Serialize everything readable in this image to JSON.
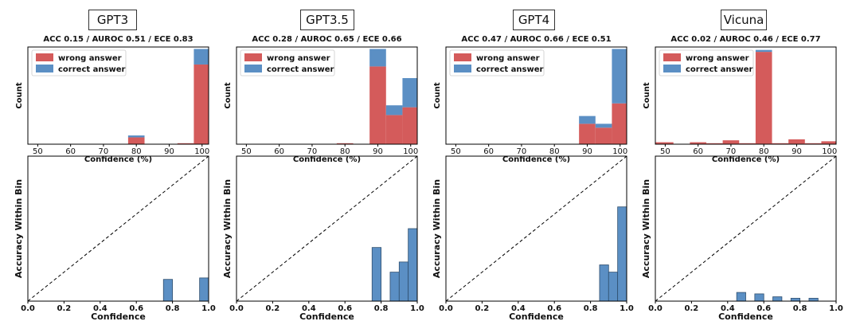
{
  "colors": {
    "wrong": "#d45b5b",
    "correct": "#5b8fc4",
    "bar_edge": "#2f4f6f"
  },
  "chart_data": [
    {
      "model": "GPT3",
      "title": "ACC 0.15 / AUROC 0.51 / ECE 0.83",
      "histogram": {
        "type": "bar",
        "stacked": true,
        "xlabel": "Confidence (%)",
        "ylabel": "Count",
        "xlim": [
          47,
          102
        ],
        "xticks": [
          50,
          60,
          70,
          80,
          90,
          100
        ],
        "legend": [
          "wrong answer",
          "correct answer"
        ],
        "legend_position": "top-left",
        "ylim": [
          0,
          1
        ],
        "bins": [
          {
            "x0": 77.5,
            "x1": 82.5,
            "wrong": 0.07,
            "correct": 0.02
          },
          {
            "x0": 92.5,
            "x1": 97.5,
            "wrong": 0.01,
            "correct": 0
          },
          {
            "x0": 97.5,
            "x1": 102,
            "wrong": 0.82,
            "correct": 0.16
          }
        ]
      },
      "reliability": {
        "type": "bar",
        "xlabel": "Confidence",
        "ylabel": "Accuracy Within Bin",
        "xlim": [
          0,
          1
        ],
        "ylim": [
          0,
          1
        ],
        "xticks": [
          "0.0",
          "0.2",
          "0.4",
          "0.6",
          "0.8",
          "1.0"
        ],
        "bins": [
          {
            "x0": 0.75,
            "x1": 0.8,
            "acc": 0.15
          },
          {
            "x0": 0.95,
            "x1": 1.0,
            "acc": 0.16
          }
        ]
      }
    },
    {
      "model": "GPT3.5",
      "title": "ACC 0.28 / AUROC 0.65 / ECE 0.66",
      "histogram": {
        "type": "bar",
        "stacked": true,
        "xlabel": "Confidence (%)",
        "ylabel": "Count",
        "xlim": [
          47,
          102
        ],
        "xticks": [
          50,
          60,
          70,
          80,
          90,
          100
        ],
        "legend": [
          "wrong answer",
          "correct answer"
        ],
        "legend_position": "top-left",
        "ylim": [
          0,
          1
        ],
        "bins": [
          {
            "x0": 77.5,
            "x1": 82.5,
            "wrong": 0.01,
            "correct": 0
          },
          {
            "x0": 87.5,
            "x1": 92.5,
            "wrong": 0.8,
            "correct": 0.18
          },
          {
            "x0": 92.5,
            "x1": 97.5,
            "wrong": 0.3,
            "correct": 0.1
          },
          {
            "x0": 97.5,
            "x1": 102,
            "wrong": 0.38,
            "correct": 0.3
          }
        ]
      },
      "reliability": {
        "type": "bar",
        "xlabel": "Confidence",
        "ylabel": "Accuracy Within Bin",
        "xlim": [
          0,
          1
        ],
        "ylim": [
          0,
          1
        ],
        "xticks": [
          "0.0",
          "0.2",
          "0.4",
          "0.6",
          "0.8",
          "1.0"
        ],
        "bins": [
          {
            "x0": 0.75,
            "x1": 0.8,
            "acc": 0.37
          },
          {
            "x0": 0.85,
            "x1": 0.9,
            "acc": 0.2
          },
          {
            "x0": 0.9,
            "x1": 0.95,
            "acc": 0.27
          },
          {
            "x0": 0.95,
            "x1": 1.0,
            "acc": 0.5
          }
        ]
      }
    },
    {
      "model": "GPT4",
      "title": "ACC 0.47 / AUROC 0.66 / ECE 0.51",
      "histogram": {
        "type": "bar",
        "stacked": true,
        "xlabel": "Confidence (%)",
        "ylabel": "Count",
        "xlim": [
          47,
          102
        ],
        "xticks": [
          50,
          60,
          70,
          80,
          90,
          100
        ],
        "legend": [
          "wrong answer",
          "correct answer"
        ],
        "legend_position": "top-left",
        "ylim": [
          0,
          1
        ],
        "bins": [
          {
            "x0": 87.5,
            "x1": 92.5,
            "wrong": 0.21,
            "correct": 0.08
          },
          {
            "x0": 92.5,
            "x1": 97.5,
            "wrong": 0.17,
            "correct": 0.04
          },
          {
            "x0": 97.5,
            "x1": 102,
            "wrong": 0.42,
            "correct": 0.56
          }
        ]
      },
      "reliability": {
        "type": "bar",
        "xlabel": "Confidence",
        "ylabel": "Accuracy Within Bin",
        "xlim": [
          0,
          1
        ],
        "ylim": [
          0,
          1
        ],
        "xticks": [
          "0.0",
          "0.2",
          "0.4",
          "0.6",
          "0.8",
          "1.0"
        ],
        "bins": [
          {
            "x0": 0.85,
            "x1": 0.9,
            "acc": 0.25
          },
          {
            "x0": 0.9,
            "x1": 0.95,
            "acc": 0.2
          },
          {
            "x0": 0.95,
            "x1": 1.0,
            "acc": 0.65
          }
        ]
      }
    },
    {
      "model": "Vicuna",
      "title": "ACC 0.02 / AUROC 0.46 / ECE 0.77",
      "histogram": {
        "type": "bar",
        "stacked": true,
        "xlabel": "Confidence (%)",
        "ylabel": "Count",
        "xlim": [
          47,
          102
        ],
        "xticks": [
          50,
          60,
          70,
          80,
          90,
          100
        ],
        "legend": [
          "wrong answer",
          "correct answer"
        ],
        "legend_position": "top-left",
        "ylim": [
          0,
          1
        ],
        "bins": [
          {
            "x0": 47,
            "x1": 52.5,
            "wrong": 0.02,
            "correct": 0
          },
          {
            "x0": 57.5,
            "x1": 62.5,
            "wrong": 0.02,
            "correct": 0
          },
          {
            "x0": 62.5,
            "x1": 67.5,
            "wrong": 0.01,
            "correct": 0
          },
          {
            "x0": 67.5,
            "x1": 72.5,
            "wrong": 0.04,
            "correct": 0
          },
          {
            "x0": 72.5,
            "x1": 77.5,
            "wrong": 0.01,
            "correct": 0
          },
          {
            "x0": 77.5,
            "x1": 82.5,
            "wrong": 0.95,
            "correct": 0.02
          },
          {
            "x0": 82.5,
            "x1": 87.5,
            "wrong": 0.01,
            "correct": 0
          },
          {
            "x0": 87.5,
            "x1": 92.5,
            "wrong": 0.05,
            "correct": 0
          },
          {
            "x0": 92.5,
            "x1": 97.5,
            "wrong": 0.01,
            "correct": 0
          },
          {
            "x0": 97.5,
            "x1": 102,
            "wrong": 0.03,
            "correct": 0
          }
        ]
      },
      "reliability": {
        "type": "bar",
        "xlabel": "Confidence",
        "ylabel": "Accuracy Within Bin",
        "xlim": [
          0,
          1
        ],
        "ylim": [
          0,
          1
        ],
        "xticks": [
          "0.0",
          "0.2",
          "0.4",
          "0.6",
          "0.8",
          "1.0"
        ],
        "bins": [
          {
            "x0": 0.45,
            "x1": 0.5,
            "acc": 0.06
          },
          {
            "x0": 0.55,
            "x1": 0.6,
            "acc": 0.05
          },
          {
            "x0": 0.65,
            "x1": 0.7,
            "acc": 0.03
          },
          {
            "x0": 0.75,
            "x1": 0.8,
            "acc": 0.02
          },
          {
            "x0": 0.85,
            "x1": 0.9,
            "acc": 0.02
          }
        ]
      }
    }
  ]
}
